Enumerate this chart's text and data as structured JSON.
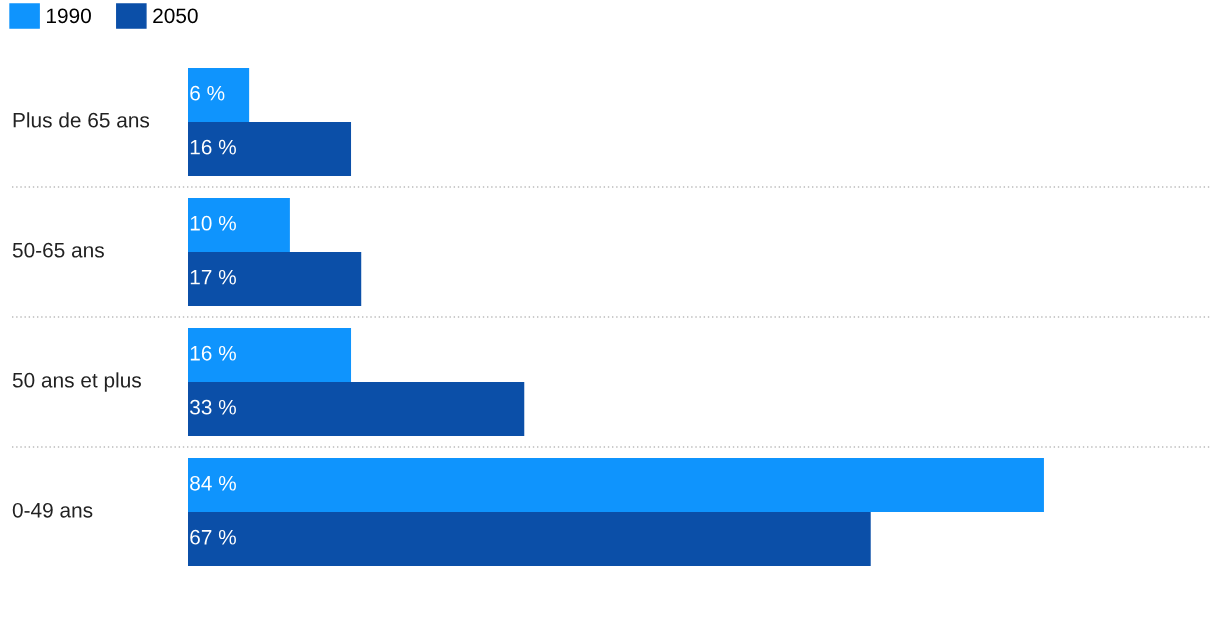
{
  "chart_data": {
    "type": "bar",
    "orientation": "horizontal",
    "legend": "top left",
    "categories": [
      "Plus de 65 ans",
      "50-65 ans",
      "50 ans et plus",
      "0-49 ans"
    ],
    "series": [
      {
        "name": "1990",
        "color": "#0f94fd",
        "values": [
          6,
          10,
          16,
          84
        ],
        "value_labels": [
          "6 %",
          "10 %",
          "16 %",
          "84 %"
        ]
      },
      {
        "name": "2050",
        "color": "#0b4fa8",
        "values": [
          16,
          17,
          33,
          67
        ],
        "value_labels": [
          "16 %",
          "17 %",
          "33 %",
          "67 %"
        ]
      }
    ]
  }
}
